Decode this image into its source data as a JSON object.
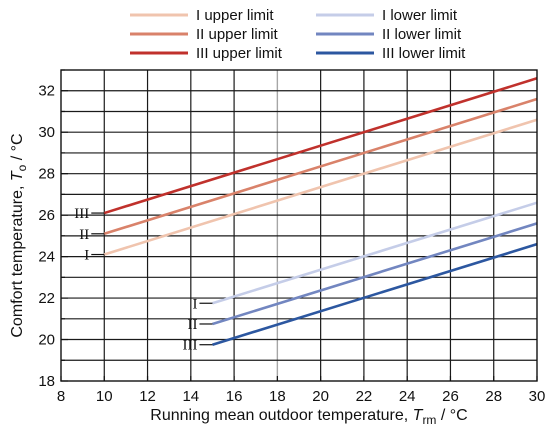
{
  "chart_data": {
    "type": "line",
    "xlabel": {
      "main": "Running mean outdoor temperature, ",
      "var": "T",
      "sub": "rm",
      "unit": " / °C"
    },
    "ylabel": {
      "main": "Comfort temperature, ",
      "var": "T",
      "sub": "o",
      "unit": " / °C"
    },
    "xlim": [
      8,
      30
    ],
    "ylim": [
      18,
      33
    ],
    "xticks": [
      8,
      10,
      12,
      14,
      16,
      18,
      20,
      22,
      24,
      26,
      28,
      30
    ],
    "yticks": [
      18,
      20,
      22,
      24,
      26,
      28,
      30,
      32
    ],
    "grid": true,
    "highlight_x": 18,
    "legend_position": "top",
    "series": [
      {
        "name": "I upper limit",
        "color": "#f0c4ae",
        "x": [
          10,
          30
        ],
        "y": [
          24.1,
          30.6
        ],
        "end_label": "I"
      },
      {
        "name": "II upper limit",
        "color": "#d9826a",
        "x": [
          10,
          30
        ],
        "y": [
          25.1,
          31.6
        ],
        "end_label": "II"
      },
      {
        "name": "III upper limit",
        "color": "#c0312c",
        "x": [
          10,
          30
        ],
        "y": [
          26.1,
          32.6
        ],
        "end_label": "III"
      },
      {
        "name": "I lower limit",
        "color": "#c5cde8",
        "x": [
          15,
          30
        ],
        "y": [
          21.75,
          26.6
        ],
        "end_label": "I"
      },
      {
        "name": "II lower limit",
        "color": "#7286c0",
        "x": [
          15,
          30
        ],
        "y": [
          20.75,
          25.6
        ],
        "end_label": "II"
      },
      {
        "name": "III lower limit",
        "color": "#2c57a0",
        "x": [
          15,
          30
        ],
        "y": [
          19.75,
          24.6
        ],
        "end_label": "III"
      }
    ]
  }
}
